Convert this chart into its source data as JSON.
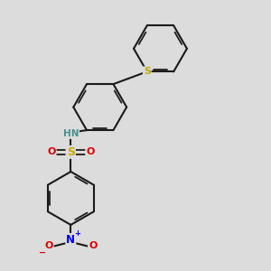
{
  "bg_color": "#dcdcdc",
  "bond_color": "#1a1a1a",
  "bond_lw": 1.5,
  "inner_lw": 1.2,
  "atom_colors": {
    "N_amine": "#4a9090",
    "H_amine": "#4a9090",
    "N_nitro": "#0000ee",
    "O_nitro": "#dd0000",
    "S_sulfonyl": "#ccaa00",
    "S_thio": "#bbaa00",
    "O_sulfonyl": "#dd0000"
  },
  "figsize": [
    3.0,
    3.0
  ],
  "dpi": 100,
  "xlim": [
    -1.5,
    4.5
  ],
  "ylim": [
    -2.0,
    5.5
  ]
}
